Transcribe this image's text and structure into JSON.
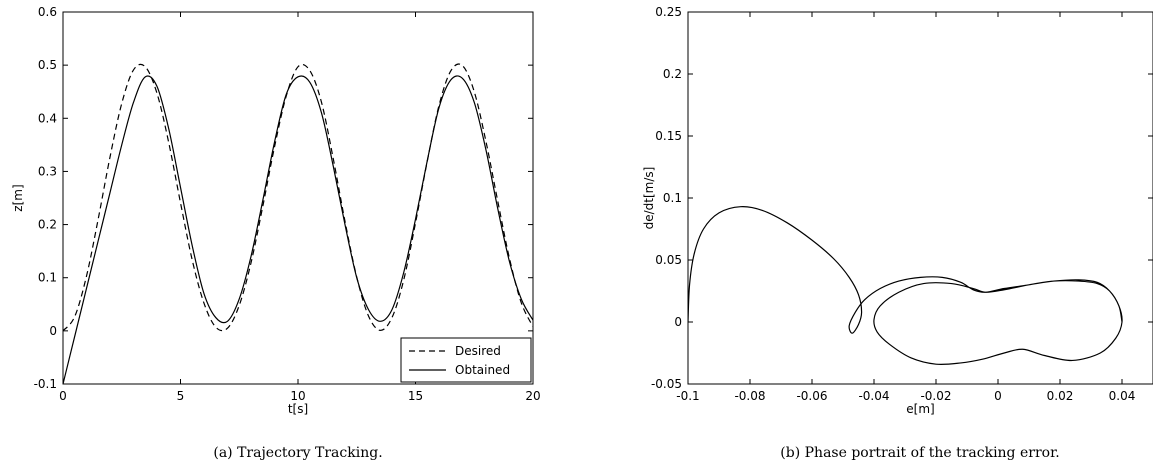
{
  "chart_data": [
    {
      "type": "line",
      "caption": "(a) Trajectory Tracking.",
      "xlabel": "t[s]",
      "ylabel": "z[m]",
      "xlim": [
        0,
        20
      ],
      "ylim": [
        -0.1,
        0.6
      ],
      "xticks": [
        "0",
        "5",
        "10",
        "15",
        "20"
      ],
      "yticks": [
        "-0.1",
        "0",
        "0.1",
        "0.2",
        "0.3",
        "0.4",
        "0.5",
        "0.6"
      ],
      "grid": false,
      "legend_position": "bottom-right",
      "series": [
        {
          "name": "Desired",
          "style": "dashed",
          "x": [
            0,
            0.5,
            1,
            1.5,
            2,
            2.5,
            3,
            3.5,
            4,
            4.5,
            5,
            5.5,
            6,
            6.5,
            7,
            7.5,
            8,
            8.5,
            9,
            9.5,
            10,
            10.5,
            11,
            11.5,
            12,
            12.5,
            13,
            13.5,
            14,
            14.5,
            15,
            15.5,
            16,
            16.5,
            17,
            17.5,
            18,
            18.5,
            19,
            19.5,
            20
          ],
          "y": [
            0.0,
            0.027,
            0.103,
            0.211,
            0.327,
            0.428,
            0.491,
            0.497,
            0.447,
            0.354,
            0.241,
            0.133,
            0.052,
            0.007,
            0.005,
            0.048,
            0.128,
            0.234,
            0.346,
            0.442,
            0.497,
            0.49,
            0.43,
            0.324,
            0.206,
            0.101,
            0.028,
            0.001,
            0.025,
            0.096,
            0.203,
            0.319,
            0.424,
            0.489,
            0.499,
            0.45,
            0.356,
            0.244,
            0.136,
            0.053,
            0.008
          ]
        },
        {
          "name": "Obtained",
          "style": "solid",
          "x": [
            0,
            0.5,
            1,
            1.5,
            2,
            2.5,
            3,
            3.5,
            4,
            4.5,
            5,
            5.5,
            6,
            6.5,
            7,
            7.5,
            8,
            8.5,
            9,
            9.5,
            10,
            10.5,
            11,
            11.5,
            12,
            12.5,
            13,
            13.5,
            14,
            14.5,
            15,
            15.5,
            16,
            16.5,
            17,
            17.5,
            18,
            18.5,
            19,
            19.5,
            20
          ],
          "y": [
            -0.1,
            -0.01,
            0.08,
            0.17,
            0.26,
            0.35,
            0.43,
            0.478,
            0.46,
            0.38,
            0.27,
            0.16,
            0.07,
            0.025,
            0.018,
            0.06,
            0.14,
            0.245,
            0.355,
            0.445,
            0.478,
            0.468,
            0.41,
            0.31,
            0.2,
            0.1,
            0.04,
            0.018,
            0.04,
            0.11,
            0.21,
            0.32,
            0.42,
            0.472,
            0.475,
            0.43,
            0.34,
            0.23,
            0.13,
            0.06,
            0.02
          ]
        }
      ]
    },
    {
      "type": "line",
      "caption": "(b) Phase portrait of the tracking error.",
      "xlabel": "e[m]",
      "ylabel": "de/dt[m/s]",
      "xlim": [
        -0.1,
        0.05
      ],
      "ylim": [
        -0.05,
        0.25
      ],
      "xticks": [
        "-0.1",
        "-0.08",
        "-0.06",
        "-0.04",
        "-0.02",
        "0",
        "0.02",
        "0.04"
      ],
      "yticks": [
        "-0.05",
        "0",
        "0.05",
        "0.1",
        "0.15",
        "0.2",
        "0.25"
      ],
      "grid": false,
      "series": [
        {
          "style": "solid",
          "x": [
            -0.1,
            -0.0995,
            -0.098,
            -0.095,
            -0.09,
            -0.083,
            -0.076,
            -0.068,
            -0.06,
            -0.053,
            -0.048,
            -0.045,
            -0.044,
            -0.045,
            -0.047,
            -0.048,
            -0.046,
            -0.043,
            -0.038,
            -0.032,
            -0.025,
            -0.018,
            -0.012,
            -0.008,
            -0.004,
            0.002,
            0.01,
            0.018,
            0.026,
            0.032,
            0.036,
            0.039,
            0.04,
            0.038,
            0.033,
            0.024,
            0.015,
            0.008,
            0.002,
            -0.005,
            -0.012,
            -0.02,
            -0.028,
            -0.035,
            -0.039,
            -0.04,
            -0.038,
            -0.032,
            -0.024,
            -0.015,
            -0.008,
            -0.004,
            0.002,
            0.01,
            0.018,
            0.026,
            0.032,
            0.036,
            0.039,
            0.04
          ],
          "y": [
            0.0,
            0.03,
            0.055,
            0.075,
            0.088,
            0.093,
            0.09,
            0.08,
            0.066,
            0.051,
            0.036,
            0.022,
            0.008,
            -0.002,
            -0.009,
            -0.003,
            0.008,
            0.018,
            0.027,
            0.033,
            0.036,
            0.036,
            0.032,
            0.026,
            0.024,
            0.027,
            0.03,
            0.033,
            0.034,
            0.032,
            0.025,
            0.013,
            0.0,
            -0.013,
            -0.025,
            -0.031,
            -0.027,
            -0.022,
            -0.025,
            -0.03,
            -0.033,
            -0.034,
            -0.029,
            -0.018,
            -0.008,
            0.002,
            0.013,
            0.024,
            0.031,
            0.031,
            0.027,
            0.024,
            0.026,
            0.03,
            0.033,
            0.033,
            0.031,
            0.025,
            0.013,
            0.0
          ]
        }
      ]
    }
  ]
}
